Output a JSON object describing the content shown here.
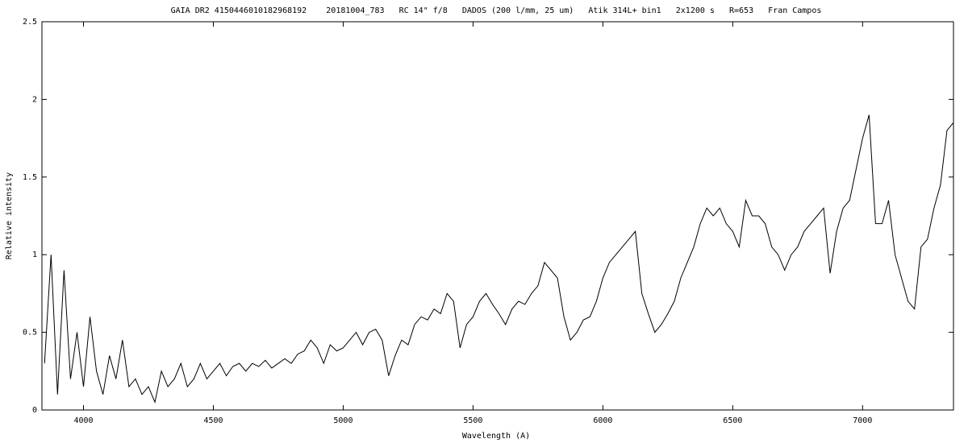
{
  "chart_data": {
    "type": "line",
    "title": "GAIA DR2 4150446010182968192    20181004_783   RC 14\" f/8   DADOS (200 l/mm, 25 um)   Atik 314L+ bin1   2x1200 s   R=653   Fran Campos",
    "x_label": "Wavelength (A)",
    "y_label": "Relative intensity",
    "color": "#000000",
    "xlim": [
      3840,
      7350
    ],
    "xticks": [
      4000,
      4500,
      5000,
      5500,
      6000,
      6500,
      7000
    ],
    "ylim": [
      0,
      2.5
    ],
    "yticks": [
      0,
      0.5,
      1,
      1.5,
      2,
      2.5
    ],
    "x": [
      3850,
      3875,
      3900,
      3925,
      3950,
      3975,
      4000,
      4025,
      4050,
      4075,
      4100,
      4125,
      4150,
      4175,
      4200,
      4225,
      4250,
      4275,
      4300,
      4325,
      4350,
      4375,
      4400,
      4425,
      4450,
      4475,
      4500,
      4525,
      4550,
      4575,
      4600,
      4625,
      4650,
      4675,
      4700,
      4725,
      4750,
      4775,
      4800,
      4825,
      4850,
      4875,
      4900,
      4925,
      4950,
      4975,
      5000,
      5025,
      5050,
      5075,
      5100,
      5125,
      5150,
      5175,
      5200,
      5225,
      5250,
      5275,
      5300,
      5325,
      5350,
      5375,
      5400,
      5425,
      5450,
      5475,
      5500,
      5525,
      5550,
      5575,
      5600,
      5625,
      5650,
      5675,
      5700,
      5725,
      5750,
      5775,
      5800,
      5825,
      5850,
      5875,
      5900,
      5925,
      5950,
      5975,
      6000,
      6025,
      6050,
      6075,
      6100,
      6125,
      6150,
      6175,
      6200,
      6225,
      6250,
      6275,
      6300,
      6325,
      6350,
      6375,
      6400,
      6425,
      6450,
      6475,
      6500,
      6525,
      6550,
      6575,
      6600,
      6625,
      6650,
      6675,
      6700,
      6725,
      6750,
      6775,
      6800,
      6825,
      6850,
      6875,
      6900,
      6925,
      6950,
      6975,
      7000,
      7025,
      7050,
      7075,
      7100,
      7125,
      7150,
      7175,
      7200,
      7225,
      7250,
      7275,
      7300,
      7325,
      7350
    ],
    "values": [
      0.3,
      1.0,
      0.1,
      0.9,
      0.2,
      0.5,
      0.15,
      0.6,
      0.25,
      0.1,
      0.35,
      0.2,
      0.45,
      0.15,
      0.2,
      0.1,
      0.15,
      0.05,
      0.25,
      0.15,
      0.2,
      0.3,
      0.15,
      0.2,
      0.3,
      0.2,
      0.25,
      0.3,
      0.22,
      0.28,
      0.3,
      0.25,
      0.3,
      0.28,
      0.32,
      0.27,
      0.3,
      0.33,
      0.3,
      0.36,
      0.38,
      0.45,
      0.4,
      0.3,
      0.42,
      0.38,
      0.4,
      0.45,
      0.5,
      0.42,
      0.5,
      0.52,
      0.45,
      0.22,
      0.35,
      0.45,
      0.42,
      0.55,
      0.6,
      0.58,
      0.65,
      0.62,
      0.75,
      0.7,
      0.4,
      0.55,
      0.6,
      0.7,
      0.75,
      0.68,
      0.62,
      0.55,
      0.65,
      0.7,
      0.68,
      0.75,
      0.8,
      0.95,
      0.9,
      0.85,
      0.6,
      0.45,
      0.5,
      0.58,
      0.6,
      0.7,
      0.85,
      0.95,
      1.0,
      1.05,
      1.1,
      1.15,
      0.75,
      0.62,
      0.5,
      0.55,
      0.62,
      0.7,
      0.85,
      0.95,
      1.05,
      1.2,
      1.3,
      1.25,
      1.3,
      1.2,
      1.15,
      1.05,
      1.35,
      1.25,
      1.25,
      1.2,
      1.05,
      1.0,
      0.9,
      1.0,
      1.05,
      1.15,
      1.2,
      1.25,
      1.3,
      0.88,
      1.15,
      1.3,
      1.35,
      1.55,
      1.75,
      1.9,
      1.2,
      1.2,
      1.35,
      1.0,
      0.85,
      0.7,
      0.65,
      1.05,
      1.1,
      1.3,
      1.45,
      1.8,
      1.85
    ]
  }
}
